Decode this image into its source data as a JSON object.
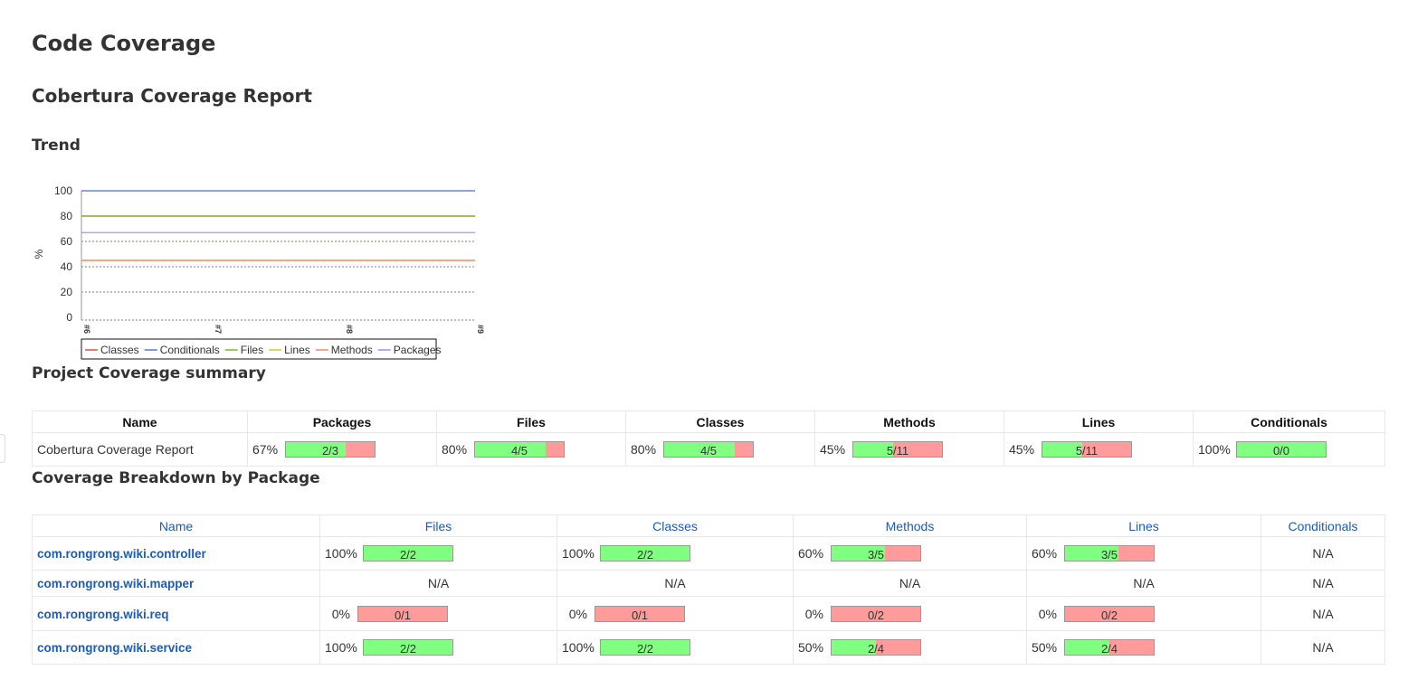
{
  "page": {
    "title": "Code Coverage",
    "report_title": "Cobertura Coverage Report",
    "trend_heading": "Trend",
    "project_heading": "Project Coverage summary",
    "package_heading": "Coverage Breakdown by Package"
  },
  "chart_data": {
    "type": "line",
    "title": "",
    "xlabel": "",
    "ylabel": "%",
    "x": [
      "#6",
      "#7",
      "#8",
      "#9"
    ],
    "ylim": [
      0,
      100
    ],
    "yticks": [
      "0",
      "20",
      "40",
      "60",
      "80",
      "100"
    ],
    "grid": true,
    "legend_position": "bottom",
    "series": [
      {
        "name": "Classes",
        "color": "#e53c3c",
        "values": [
          80,
          80,
          80,
          80
        ]
      },
      {
        "name": "Conditionals",
        "color": "#4a6fc7",
        "values": [
          100,
          100,
          100,
          100
        ]
      },
      {
        "name": "Files",
        "color": "#6cb52b",
        "values": [
          80,
          80,
          80,
          80
        ]
      },
      {
        "name": "Lines",
        "color": "#d6c21e",
        "values": [
          45,
          45,
          45,
          45
        ]
      },
      {
        "name": "Methods",
        "color": "#f08060",
        "values": [
          45,
          45,
          45,
          45
        ]
      },
      {
        "name": "Packages",
        "color": "#8d8de8",
        "values": [
          67,
          67,
          67,
          67
        ]
      }
    ]
  },
  "project_summary": {
    "headers": [
      "Name",
      "Packages",
      "Files",
      "Classes",
      "Methods",
      "Lines",
      "Conditionals"
    ],
    "row": {
      "name": "Cobertura Coverage Report",
      "cells": [
        {
          "pct": "67%",
          "ratio": "2/3",
          "fraction": 0.67
        },
        {
          "pct": "80%",
          "ratio": "4/5",
          "fraction": 0.8
        },
        {
          "pct": "80%",
          "ratio": "4/5",
          "fraction": 0.8
        },
        {
          "pct": "45%",
          "ratio": "5/11",
          "fraction": 0.45
        },
        {
          "pct": "45%",
          "ratio": "5/11",
          "fraction": 0.45
        },
        {
          "pct": "100%",
          "ratio": "0/0",
          "fraction": 1.0
        }
      ]
    }
  },
  "packages": {
    "headers": [
      "Name",
      "Files",
      "Classes",
      "Methods",
      "Lines",
      "Conditionals"
    ],
    "rows": [
      {
        "name": "com.rongrong.wiki.controller",
        "files": {
          "pct": "100%",
          "ratio": "2/2",
          "fraction": 1.0
        },
        "classes": {
          "pct": "100%",
          "ratio": "2/2",
          "fraction": 1.0
        },
        "methods": {
          "pct": "60%",
          "ratio": "3/5",
          "fraction": 0.6
        },
        "lines": {
          "pct": "60%",
          "ratio": "3/5",
          "fraction": 0.6
        },
        "conditionals": "N/A"
      },
      {
        "name": "com.rongrong.wiki.mapper",
        "files": "N/A",
        "classes": "N/A",
        "methods": "N/A",
        "lines": "N/A",
        "conditionals": "N/A"
      },
      {
        "name": "com.rongrong.wiki.req",
        "files": {
          "pct": "0%",
          "ratio": "0/1",
          "fraction": 0.0
        },
        "classes": {
          "pct": "0%",
          "ratio": "0/1",
          "fraction": 0.0
        },
        "methods": {
          "pct": "0%",
          "ratio": "0/2",
          "fraction": 0.0
        },
        "lines": {
          "pct": "0%",
          "ratio": "0/2",
          "fraction": 0.0
        },
        "conditionals": "N/A"
      },
      {
        "name": "com.rongrong.wiki.service",
        "files": {
          "pct": "100%",
          "ratio": "2/2",
          "fraction": 1.0
        },
        "classes": {
          "pct": "100%",
          "ratio": "2/2",
          "fraction": 1.0
        },
        "methods": {
          "pct": "50%",
          "ratio": "2/4",
          "fraction": 0.5
        },
        "lines": {
          "pct": "50%",
          "ratio": "2/4",
          "fraction": 0.5
        },
        "conditionals": "N/A"
      }
    ]
  },
  "colors": {
    "covered": "#80ff80",
    "uncovered": "#ff9b9b",
    "link": "#1e5bb4"
  }
}
